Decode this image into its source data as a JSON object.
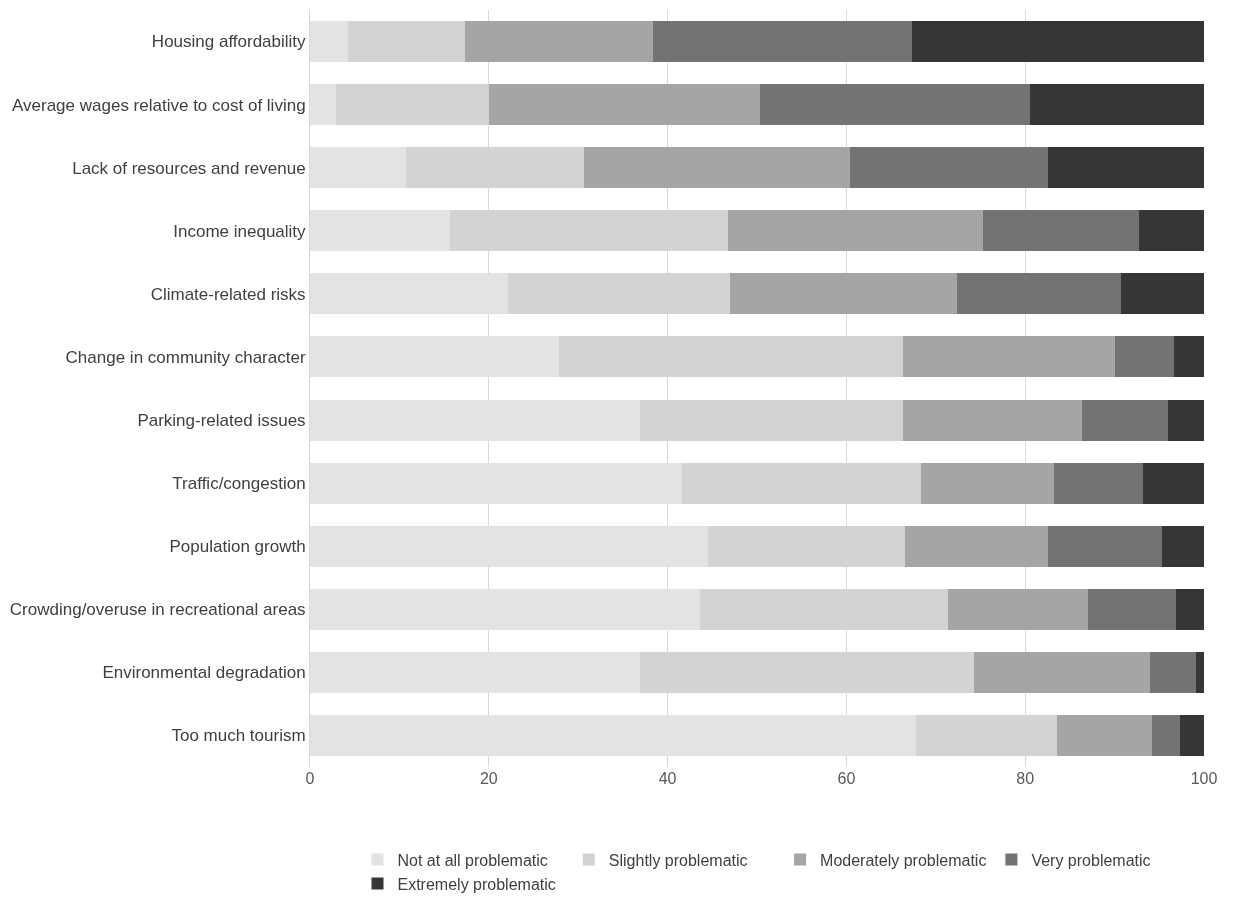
{
  "chart_data": {
    "type": "bar",
    "orientation": "horizontal",
    "stacked": true,
    "categories": [
      "Housing affordability",
      "Average wages relative to cost of living",
      "Lack of resources and revenue",
      "Income inequality",
      "Climate-related risks",
      "Change in community character",
      "Parking-related issues",
      "Traffic/congestion",
      "Population growth",
      "Crowding/overuse in recreational areas",
      "Environmental degradation",
      "Too much tourism"
    ],
    "series": [
      {
        "name": "Not at all problematic",
        "color": "#e3e3e3",
        "values": [
          4.3,
          2.9,
          10.7,
          15.7,
          22.2,
          27.9,
          36.9,
          41.6,
          44.5,
          43.6,
          36.9,
          67.8
        ]
      },
      {
        "name": "Slightly problematic",
        "color": "#d3d3d3",
        "values": [
          13,
          17.1,
          20,
          31,
          24.8,
          38.4,
          29.4,
          26.7,
          22.1,
          27.8,
          37.4,
          15.8
        ]
      },
      {
        "name": "Moderately problematic",
        "color": "#a5a5a5",
        "values": [
          21.1,
          30.3,
          29.7,
          28.6,
          25.4,
          23.8,
          20,
          14.9,
          15.9,
          15.6,
          19.7,
          10.6
        ]
      },
      {
        "name": "Very problematic",
        "color": "#737373",
        "values": [
          28.9,
          30.2,
          22.1,
          17.4,
          18.3,
          6.5,
          9.7,
          10,
          12.8,
          9.9,
          5.1,
          3.1
        ]
      },
      {
        "name": "Extremely problematic",
        "color": "#363636",
        "values": [
          32.7,
          19.5,
          17.5,
          7.3,
          9.3,
          3.4,
          4,
          6.8,
          4.7,
          3.1,
          0.9,
          2.7
        ]
      }
    ],
    "xlim": [
      0,
      100
    ],
    "xticks": [
      0,
      20,
      40,
      60,
      80,
      100
    ],
    "grid": "x",
    "legend": "bottom"
  }
}
